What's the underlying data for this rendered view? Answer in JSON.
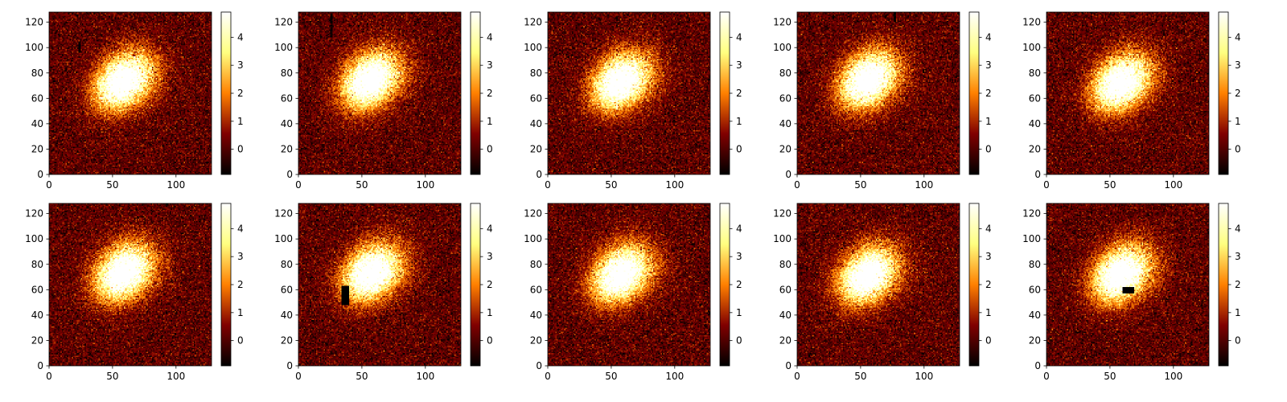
{
  "chart_data": {
    "type": "heatmap",
    "colormap": "afmhot",
    "grid": false,
    "colorbar_range": [
      -0.9,
      4.9
    ],
    "colorbar_ticks": [
      -0.0,
      1,
      2,
      3,
      4
    ],
    "colorbar_tick_labels": [
      "0",
      "1",
      "2",
      "3",
      "4"
    ],
    "panels": [
      {
        "row": 0,
        "col": 0,
        "xlim": [
          0,
          128
        ],
        "ylim": [
          0,
          128
        ],
        "x_ticks": [
          "0",
          "50",
          "100"
        ],
        "y_ticks": [
          "0",
          "20",
          "40",
          "60",
          "80",
          "100",
          "120"
        ],
        "blob_center": [
          55,
          70
        ],
        "mask": null,
        "streak": [
          23,
          96,
          104
        ]
      },
      {
        "row": 0,
        "col": 1,
        "xlim": [
          0,
          128
        ],
        "ylim": [
          0,
          128
        ],
        "x_ticks": [
          "0",
          "50",
          "100"
        ],
        "y_ticks": [
          "0",
          "20",
          "40",
          "60",
          "80",
          "100",
          "120"
        ],
        "blob_center": [
          53,
          71
        ],
        "mask": null,
        "streak": [
          25,
          108,
          126
        ]
      },
      {
        "row": 0,
        "col": 2,
        "xlim": [
          0,
          128
        ],
        "ylim": [
          0,
          128
        ],
        "x_ticks": [
          "0",
          "50",
          "100"
        ],
        "y_ticks": [
          "0",
          "20",
          "40",
          "60",
          "80",
          "100",
          "120"
        ],
        "blob_center": [
          54,
          70
        ],
        "mask": null,
        "streak": null
      },
      {
        "row": 0,
        "col": 3,
        "xlim": [
          0,
          128
        ],
        "ylim": [
          0,
          128
        ],
        "x_ticks": [
          "0",
          "50",
          "100"
        ],
        "y_ticks": [
          "0",
          "20",
          "40",
          "60",
          "80",
          "100",
          "120"
        ],
        "blob_center": [
          52,
          71
        ],
        "mask": null,
        "streak": [
          76,
          120,
          128
        ]
      },
      {
        "row": 0,
        "col": 4,
        "xlim": [
          0,
          128
        ],
        "ylim": [
          0,
          128
        ],
        "x_ticks": [
          "0",
          "50",
          "100"
        ],
        "y_ticks": [
          "0",
          "20",
          "40",
          "60",
          "80",
          "100",
          "120"
        ],
        "blob_center": [
          55,
          69
        ],
        "mask": null,
        "streak": null
      },
      {
        "row": 1,
        "col": 0,
        "xlim": [
          0,
          128
        ],
        "ylim": [
          0,
          128
        ],
        "x_ticks": [
          "0",
          "50",
          "100"
        ],
        "y_ticks": [
          "0",
          "20",
          "40",
          "60",
          "80",
          "100",
          "120"
        ],
        "blob_center": [
          55,
          70
        ],
        "mask": null,
        "streak": null
      },
      {
        "row": 1,
        "col": 1,
        "xlim": [
          0,
          128
        ],
        "ylim": [
          0,
          128
        ],
        "x_ticks": [
          "0",
          "50",
          "100"
        ],
        "y_ticks": [
          "0",
          "20",
          "40",
          "60",
          "80",
          "100",
          "120"
        ],
        "blob_center": [
          54,
          70
        ],
        "mask": [
          34,
          48,
          39,
          62
        ],
        "streak": null
      },
      {
        "row": 1,
        "col": 2,
        "xlim": [
          0,
          128
        ],
        "ylim": [
          0,
          128
        ],
        "x_ticks": [
          "0",
          "50",
          "100"
        ],
        "y_ticks": [
          "0",
          "20",
          "40",
          "60",
          "80",
          "100",
          "120"
        ],
        "blob_center": [
          54,
          69
        ],
        "mask": null,
        "streak": null
      },
      {
        "row": 1,
        "col": 3,
        "xlim": [
          0,
          128
        ],
        "ylim": [
          0,
          128
        ],
        "x_ticks": [
          "0",
          "50",
          "100"
        ],
        "y_ticks": [
          "0",
          "20",
          "40",
          "60",
          "80",
          "100",
          "120"
        ],
        "blob_center": [
          52,
          68
        ],
        "mask": null,
        "streak": null
      },
      {
        "row": 1,
        "col": 4,
        "xlim": [
          0,
          128
        ],
        "ylim": [
          0,
          128
        ],
        "x_ticks": [
          "0",
          "50",
          "100"
        ],
        "y_ticks": [
          "0",
          "20",
          "40",
          "60",
          "80",
          "100",
          "120"
        ],
        "blob_center": [
          55,
          69
        ],
        "mask": [
          60,
          57,
          68,
          61
        ],
        "streak": null
      }
    ]
  }
}
